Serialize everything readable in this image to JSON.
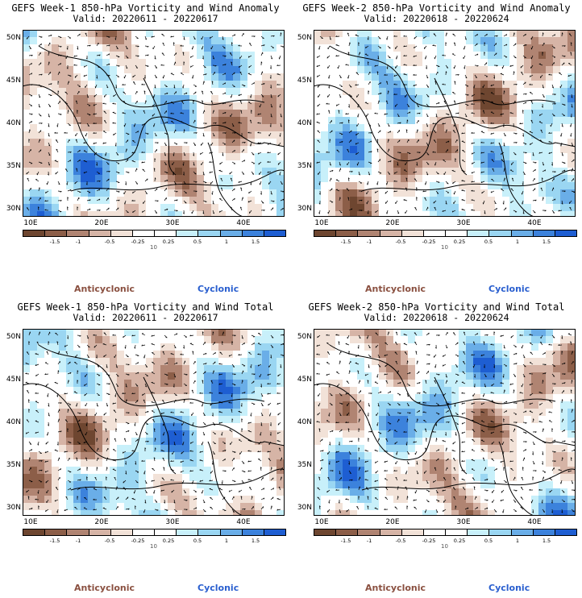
{
  "panels": [
    {
      "id": "week1-anomaly",
      "title": "GEFS Week-1 850-hPa Vorticity and Wind Anomaly",
      "valid": "Valid: 20220611 - 20220617"
    },
    {
      "id": "week2-anomaly",
      "title": "GEFS Week-2 850-hPa Vorticity and Wind Anomaly",
      "valid": "Valid: 20220618 - 20220624"
    },
    {
      "id": "week1-total",
      "title": "GEFS Week-1 850-hPa Vorticity and Wind Total",
      "valid": "Valid: 20220611 - 20220617"
    },
    {
      "id": "week2-total",
      "title": "GEFS Week-2 850-hPa Vorticity and Wind Total",
      "valid": "Valid: 20220618 - 20220624"
    }
  ],
  "lat_labels": [
    "50N",
    "45N",
    "40N",
    "35N",
    "30N"
  ],
  "lon_labels": [
    "10E",
    "20E",
    "30E",
    "40E"
  ],
  "colorbar": {
    "colors": [
      "#6e4630",
      "#8c5e48",
      "#b08472",
      "#d6b4a6",
      "#f2e2d8",
      "#ffffff",
      "#ffffff",
      "#c8f0fa",
      "#9ad6f2",
      "#6aaee8",
      "#3c82dc",
      "#1e5ed2"
    ],
    "ticks": [
      "-1.5",
      "-1",
      "-0.5",
      "-0.25",
      "0.25",
      "0.5",
      "1",
      "1.5"
    ],
    "unit_label": "10"
  },
  "legend": {
    "anticyclonic": "Anticyclonic",
    "cyclonic": "Cyclonic"
  }
}
